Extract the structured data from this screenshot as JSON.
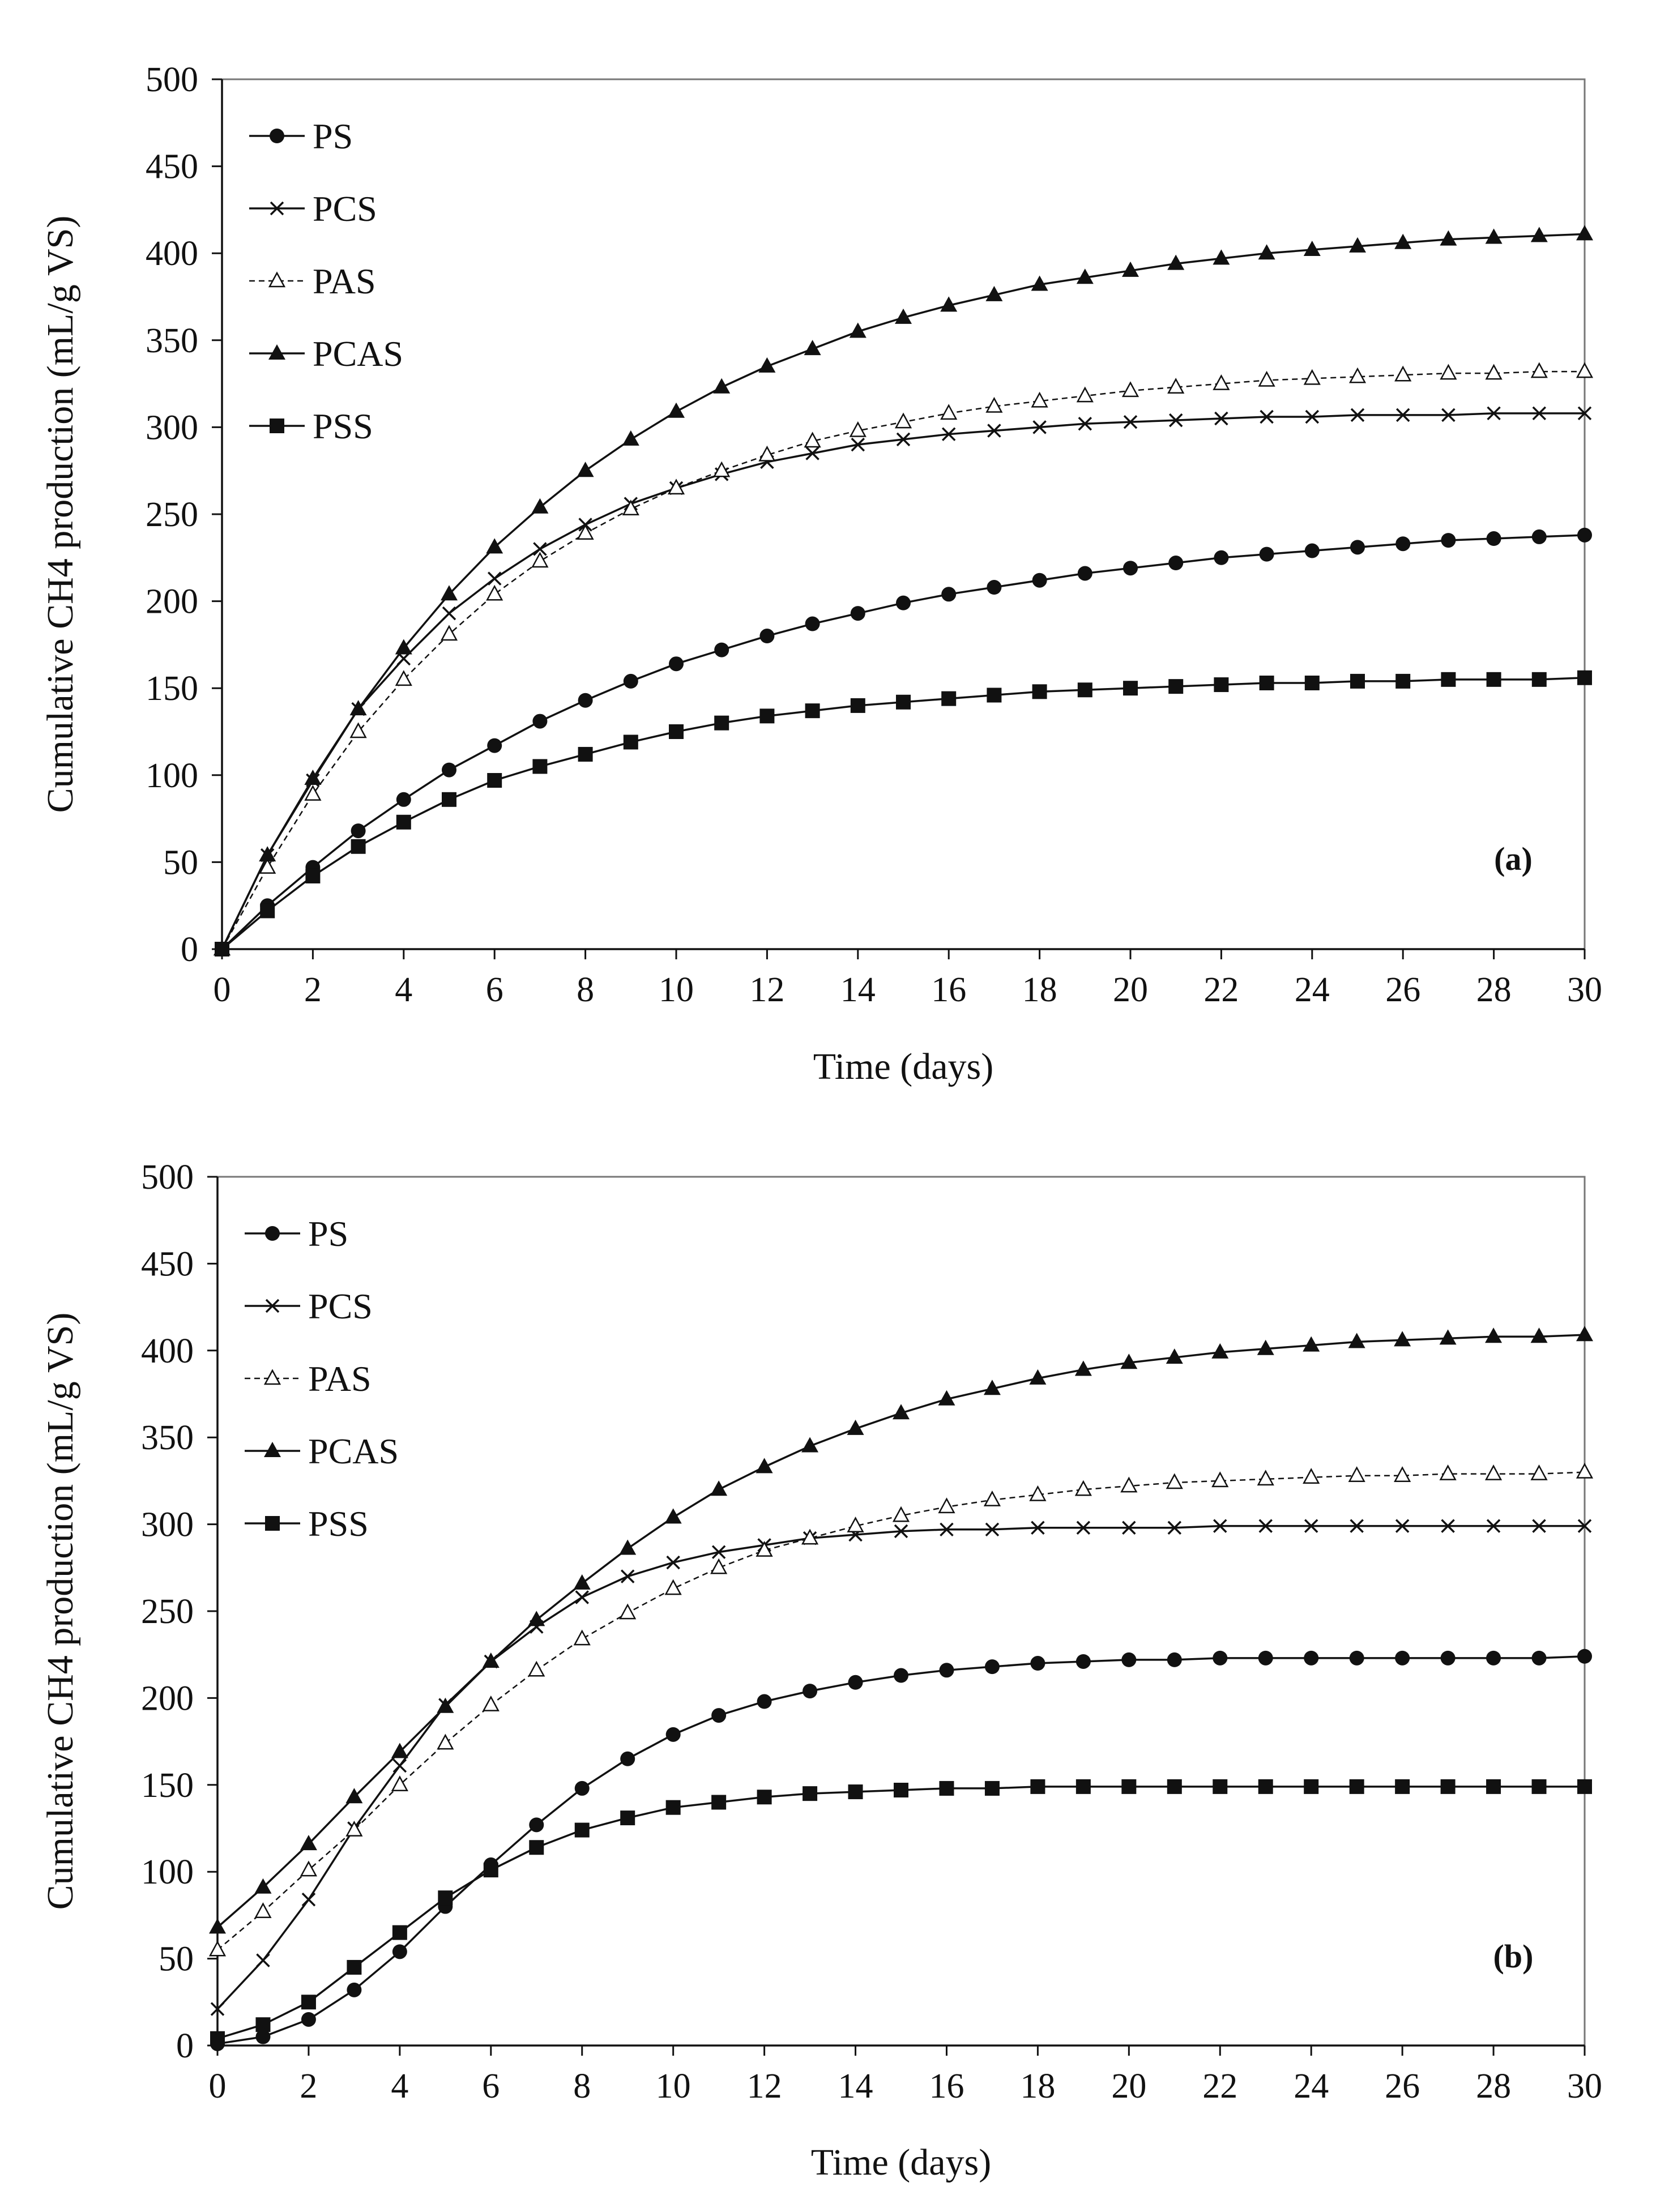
{
  "chart_data": [
    {
      "type": "line",
      "panel_label": "(a)",
      "xlabel": "Time (days)",
      "ylabel": "Cumulative CH4 production  (mL/g VS)",
      "xlim": [
        0,
        30
      ],
      "ylim": [
        0,
        500
      ],
      "xticks": [
        0,
        2,
        4,
        6,
        8,
        10,
        12,
        14,
        16,
        18,
        20,
        22,
        24,
        26,
        28,
        30
      ],
      "yticks": [
        0,
        50,
        100,
        150,
        200,
        250,
        300,
        350,
        400,
        450,
        500
      ],
      "grid": false,
      "legend_position": "top-left",
      "x": [
        0,
        1,
        2,
        3,
        4,
        5,
        6,
        7,
        8,
        9,
        10,
        11,
        12,
        13,
        14,
        15,
        16,
        17,
        18,
        19,
        20,
        21,
        22,
        23,
        24,
        25,
        26,
        27,
        28,
        29,
        30
      ],
      "series": [
        {
          "name": "PS",
          "marker": "circle",
          "line": "solid",
          "values": [
            0,
            25,
            47,
            68,
            86,
            103,
            117,
            131,
            143,
            154,
            164,
            172,
            180,
            187,
            193,
            199,
            204,
            208,
            212,
            216,
            219,
            222,
            225,
            227,
            229,
            231,
            233,
            235,
            236,
            237,
            238
          ]
        },
        {
          "name": "PCS",
          "marker": "x",
          "line": "solid",
          "values": [
            0,
            54,
            97,
            138,
            167,
            193,
            213,
            230,
            244,
            256,
            265,
            273,
            280,
            285,
            290,
            293,
            296,
            298,
            300,
            302,
            303,
            304,
            305,
            306,
            306,
            307,
            307,
            307,
            308,
            308,
            308
          ]
        },
        {
          "name": "PAS",
          "marker": "triangle-open",
          "line": "dashed",
          "values": [
            0,
            47,
            89,
            125,
            155,
            181,
            204,
            223,
            239,
            253,
            265,
            275,
            284,
            292,
            298,
            303,
            308,
            312,
            315,
            318,
            321,
            323,
            325,
            327,
            328,
            329,
            330,
            331,
            331,
            332,
            332
          ]
        },
        {
          "name": "PCAS",
          "marker": "triangle-filled",
          "line": "solid",
          "values": [
            0,
            54,
            98,
            138,
            173,
            204,
            231,
            254,
            275,
            293,
            309,
            323,
            335,
            345,
            355,
            363,
            370,
            376,
            382,
            386,
            390,
            394,
            397,
            400,
            402,
            404,
            406,
            408,
            409,
            410,
            411
          ]
        },
        {
          "name": "PSS",
          "marker": "square",
          "line": "solid",
          "values": [
            0,
            22,
            42,
            59,
            73,
            86,
            97,
            105,
            112,
            119,
            125,
            130,
            134,
            137,
            140,
            142,
            144,
            146,
            148,
            149,
            150,
            151,
            152,
            153,
            153,
            154,
            154,
            155,
            155,
            155,
            156
          ]
        }
      ]
    },
    {
      "type": "line",
      "panel_label": "(b)",
      "xlabel": "Time (days)",
      "ylabel": "Cumulative CH4 production  (mL/g VS)",
      "xlim": [
        0,
        30
      ],
      "ylim": [
        0,
        500
      ],
      "xticks": [
        0,
        2,
        4,
        6,
        8,
        10,
        12,
        14,
        16,
        18,
        20,
        22,
        24,
        26,
        28,
        30
      ],
      "yticks": [
        0,
        50,
        100,
        150,
        200,
        250,
        300,
        350,
        400,
        450,
        500
      ],
      "grid": false,
      "legend_position": "top-left",
      "x": [
        0,
        1,
        2,
        3,
        4,
        5,
        6,
        7,
        8,
        9,
        10,
        11,
        12,
        13,
        14,
        15,
        16,
        17,
        18,
        19,
        20,
        21,
        22,
        23,
        24,
        25,
        26,
        27,
        28,
        29,
        30
      ],
      "series": [
        {
          "name": "PS",
          "marker": "circle",
          "line": "solid",
          "values": [
            1,
            5,
            15,
            32,
            54,
            80,
            104,
            127,
            148,
            165,
            179,
            190,
            198,
            204,
            209,
            213,
            216,
            218,
            220,
            221,
            222,
            222,
            223,
            223,
            223,
            223,
            223,
            223,
            223,
            223,
            224
          ]
        },
        {
          "name": "PCS",
          "marker": "x",
          "line": "solid",
          "values": [
            21,
            49,
            84,
            125,
            161,
            196,
            221,
            241,
            258,
            270,
            278,
            284,
            288,
            292,
            294,
            296,
            297,
            297,
            298,
            298,
            298,
            298,
            299,
            299,
            299,
            299,
            299,
            299,
            299,
            299,
            299
          ]
        },
        {
          "name": "PAS",
          "marker": "triangle-open",
          "line": "dashed",
          "values": [
            55,
            77,
            101,
            124,
            150,
            174,
            196,
            216,
            234,
            249,
            263,
            275,
            285,
            292,
            299,
            305,
            310,
            314,
            317,
            320,
            322,
            324,
            325,
            326,
            327,
            328,
            328,
            329,
            329,
            329,
            330
          ]
        },
        {
          "name": "PCAS",
          "marker": "triangle-filled",
          "line": "solid",
          "values": [
            68,
            91,
            116,
            143,
            169,
            195,
            221,
            245,
            266,
            286,
            304,
            320,
            333,
            345,
            355,
            364,
            372,
            378,
            384,
            389,
            393,
            396,
            399,
            401,
            403,
            405,
            406,
            407,
            408,
            408,
            409
          ]
        },
        {
          "name": "PSS",
          "marker": "square",
          "line": "solid",
          "values": [
            4,
            12,
            25,
            45,
            65,
            85,
            101,
            114,
            124,
            131,
            137,
            140,
            143,
            145,
            146,
            147,
            148,
            148,
            149,
            149,
            149,
            149,
            149,
            149,
            149,
            149,
            149,
            149,
            149,
            149,
            149
          ]
        }
      ]
    }
  ]
}
